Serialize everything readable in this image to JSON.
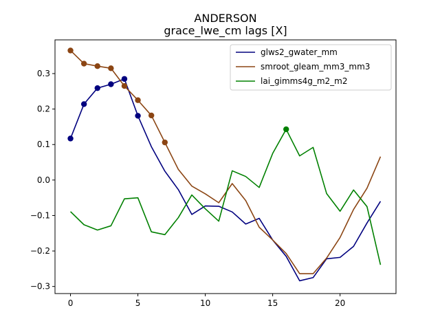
{
  "chart_data": {
    "type": "line",
    "title": "ANDERSON",
    "subtitle": "grace_lwe_cm lags [X]",
    "xlim": [
      -1.15,
      24.15
    ],
    "ylim": [
      -0.32,
      0.395
    ],
    "xticks": [
      0,
      5,
      10,
      15,
      20
    ],
    "yticks": [
      -0.3,
      -0.2,
      -0.1,
      0.0,
      0.1,
      0.2,
      0.3
    ],
    "ytick_labels": [
      "−0.3",
      "−0.2",
      "−0.1",
      "0.0",
      "0.1",
      "0.2",
      "0.3"
    ],
    "legend_position": "top-right",
    "grid": false,
    "x": [
      0,
      1,
      2,
      3,
      4,
      5,
      6,
      7,
      8,
      9,
      10,
      11,
      12,
      13,
      14,
      15,
      16,
      17,
      18,
      19,
      20,
      21,
      22,
      23
    ],
    "series": [
      {
        "name": "glws2_gwater_mm",
        "color": "#00007f",
        "values": [
          0.117,
          0.214,
          0.259,
          0.27,
          0.285,
          0.181,
          0.094,
          0.025,
          -0.027,
          -0.097,
          -0.073,
          -0.074,
          -0.09,
          -0.124,
          -0.108,
          -0.169,
          -0.215,
          -0.284,
          -0.275,
          -0.222,
          -0.218,
          -0.187,
          -0.121,
          -0.06
        ],
        "markers": [
          0,
          1,
          2,
          3,
          4,
          5
        ]
      },
      {
        "name": "smroot_gleam_mm3_mm3",
        "color": "#8b4513",
        "values": [
          0.365,
          0.328,
          0.321,
          0.315,
          0.265,
          0.225,
          0.182,
          0.106,
          0.03,
          -0.017,
          -0.039,
          -0.064,
          -0.01,
          -0.058,
          -0.133,
          -0.169,
          -0.207,
          -0.264,
          -0.264,
          -0.22,
          -0.162,
          -0.083,
          -0.023,
          0.066
        ],
        "markers": [
          0,
          1,
          2,
          3,
          4,
          5,
          6,
          7
        ]
      },
      {
        "name": "lai_gimms4g_m2_m2",
        "color": "#008000",
        "values": [
          -0.089,
          -0.126,
          -0.141,
          -0.129,
          -0.053,
          -0.05,
          -0.146,
          -0.154,
          -0.106,
          -0.042,
          -0.081,
          -0.116,
          0.026,
          0.01,
          -0.021,
          0.075,
          0.143,
          0.068,
          0.092,
          -0.038,
          -0.088,
          -0.028,
          -0.075,
          -0.239
        ],
        "markers": [
          16
        ]
      }
    ]
  }
}
